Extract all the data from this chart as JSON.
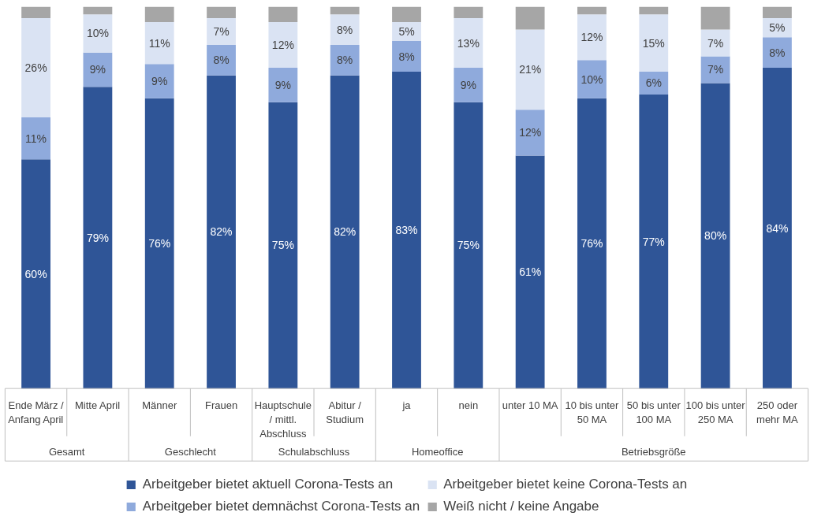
{
  "chart_data": {
    "type": "bar",
    "stacked": true,
    "ylim": [
      0,
      100
    ],
    "tick_labels": "x",
    "grid": false,
    "legend": "bottom",
    "categories": [
      "Ende März /\nAnfang April",
      "Mitte April",
      "Männer",
      "Frauen",
      "Hauptschule\n/ mittl.\nAbschluss",
      "Abitur /\nStudium",
      "ja",
      "nein",
      "unter 10 MA",
      "10 bis unter\n50 MA",
      "50 bis unter\n100 MA",
      "100 bis unter\n250 MA",
      "250 oder\nmehr MA"
    ],
    "series": [
      {
        "name": "Arbeitgeber bietet aktuell Corona-Tests an",
        "color": "#2f5597",
        "values": [
          60,
          79,
          76,
          82,
          75,
          82,
          83,
          75,
          61,
          76,
          77,
          80,
          84
        ],
        "value_labels": [
          "60%",
          "79%",
          "76%",
          "82%",
          "75%",
          "82%",
          "83%",
          "75%",
          "61%",
          "76%",
          "77%",
          "80%",
          "84%"
        ]
      },
      {
        "name": "Arbeitgeber bietet demnächst Corona-Tests an",
        "color": "#8faadc",
        "values": [
          11,
          9,
          9,
          8,
          9,
          8,
          8,
          9,
          12,
          10,
          6,
          7,
          8
        ],
        "value_labels": [
          "11%",
          "9%",
          "9%",
          "8%",
          "9%",
          "8%",
          "8%",
          "9%",
          "12%",
          "10%",
          "6%",
          "7%",
          "8%"
        ]
      },
      {
        "name": "Arbeitgeber bietet keine Corona-Tests an",
        "color": "#dae3f3",
        "values": [
          26,
          10,
          11,
          7,
          12,
          8,
          5,
          13,
          21,
          12,
          15,
          7,
          5
        ],
        "value_labels": [
          "26%",
          "10%",
          "11%",
          "7%",
          "12%",
          "8%",
          "5%",
          "13%",
          "21%",
          "12%",
          "15%",
          "7%",
          "5%"
        ]
      },
      {
        "name": "Weiß nicht / keine Angabe",
        "color": "#a6a6a6",
        "values": [
          3,
          2,
          4,
          3,
          4,
          2,
          4,
          3,
          6,
          2,
          2,
          6,
          3
        ]
      }
    ],
    "annotations": [
      "Gesamt",
      "Geschlecht",
      "Schulabschluss",
      "Homeoffice",
      "Betriebsgröße"
    ]
  }
}
